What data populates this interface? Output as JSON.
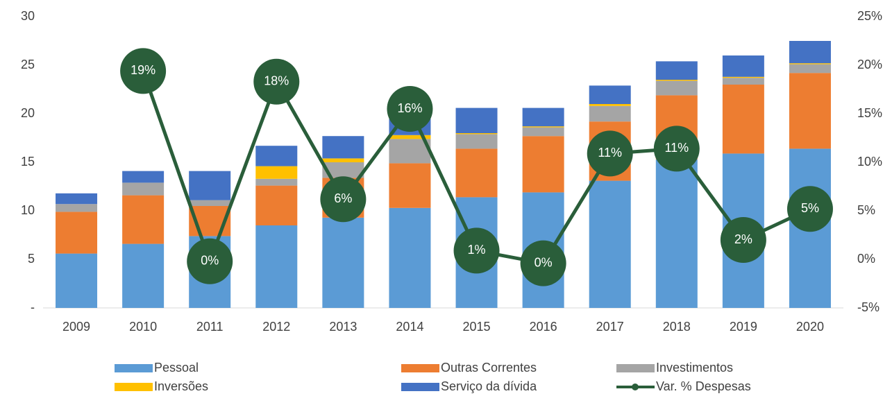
{
  "chart_data": {
    "type": "bar",
    "categories": [
      "2009",
      "2010",
      "2011",
      "2012",
      "2013",
      "2014",
      "2015",
      "2016",
      "2017",
      "2018",
      "2019",
      "2020"
    ],
    "stacked": true,
    "series": [
      {
        "name": "Pessoal",
        "color": "#5b9bd5",
        "values": [
          5.6,
          6.6,
          7.4,
          8.5,
          9.3,
          10.3,
          11.4,
          11.9,
          13.1,
          15.3,
          15.9,
          16.4
        ]
      },
      {
        "name": "Outras Correntes",
        "color": "#ed7d31",
        "values": [
          4.3,
          5.0,
          3.1,
          4.1,
          4.1,
          4.6,
          5.0,
          5.8,
          6.1,
          6.6,
          7.1,
          7.8
        ]
      },
      {
        "name": "Investimentos",
        "color": "#a5a5a5",
        "values": [
          0.8,
          1.3,
          0.6,
          0.7,
          1.6,
          2.5,
          1.5,
          0.9,
          1.6,
          1.5,
          0.7,
          0.9
        ]
      },
      {
        "name": "Inversões",
        "color": "#ffc000",
        "values": [
          0,
          0,
          0,
          1.3,
          0.4,
          0.4,
          0.1,
          0.1,
          0.2,
          0.1,
          0.1,
          0.1
        ]
      },
      {
        "name": "Serviço da dívida",
        "color": "#4472c4",
        "values": [
          1.1,
          1.2,
          3.0,
          2.1,
          2.3,
          1.9,
          2.6,
          1.9,
          1.9,
          1.9,
          2.2,
          2.3
        ]
      },
      {
        "name": "Var. % Despesas",
        "color": "#2a5e3a",
        "type": "line",
        "axis": "y2",
        "values": [
          null,
          19.4,
          -0.2,
          18.3,
          6.2,
          15.5,
          0.9,
          -0.4,
          10.9,
          11.4,
          2.0,
          5.2
        ],
        "value_labels": [
          null,
          "19%",
          "0%",
          "18%",
          "6%",
          "16%",
          "1%",
          "0%",
          "11%",
          "11%",
          "2%",
          "5%"
        ]
      }
    ],
    "ylim": [
      0,
      30
    ],
    "yticks": [
      {
        "value": 0,
        "label": "-"
      },
      5,
      10,
      15,
      20,
      25,
      30
    ],
    "y2lim": [
      -5,
      25
    ],
    "y2ticks": [
      {
        "value": -5,
        "label": "-5%"
      },
      {
        "value": 0,
        "label": "0%"
      },
      {
        "value": 5,
        "label": "5%"
      },
      {
        "value": 10,
        "label": "10%"
      },
      {
        "value": 15,
        "label": "15%"
      },
      {
        "value": 20,
        "label": "20%"
      },
      {
        "value": 25,
        "label": "25%"
      }
    ],
    "grid": false,
    "legend": "bottom"
  }
}
